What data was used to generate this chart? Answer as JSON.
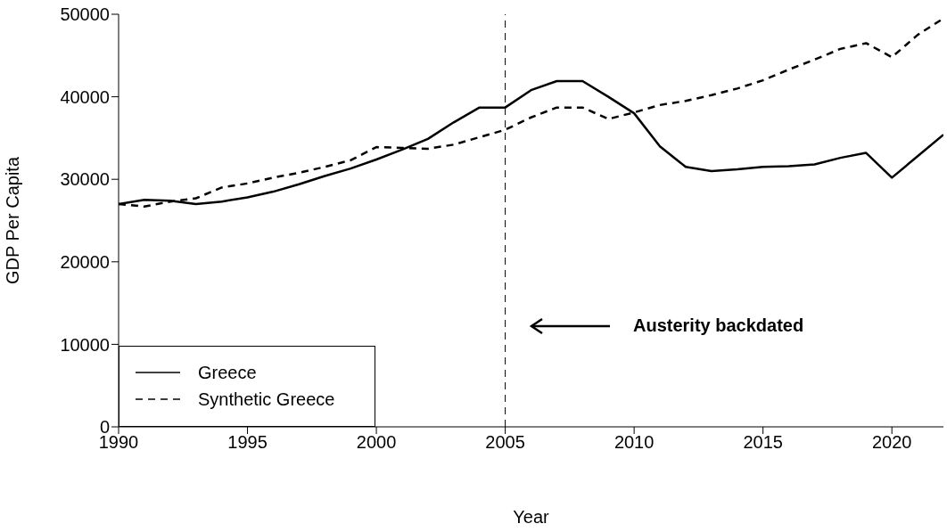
{
  "chart_data": {
    "type": "line",
    "xlabel": "Year",
    "ylabel": "GDP Per Capita",
    "x": [
      1990,
      1991,
      1992,
      1993,
      1994,
      1995,
      1996,
      1997,
      1998,
      1999,
      2000,
      2001,
      2002,
      2003,
      2004,
      2005,
      2006,
      2007,
      2008,
      2009,
      2010,
      2011,
      2012,
      2013,
      2014,
      2015,
      2016,
      2017,
      2018,
      2019,
      2020,
      2021,
      2022
    ],
    "series": [
      {
        "name": "Greece",
        "color": "#000000",
        "line_style": "solid",
        "values": [
          27000,
          27500,
          27400,
          27000,
          27300,
          27800,
          28500,
          29400,
          30400,
          31300,
          32400,
          33600,
          34900,
          36900,
          38700,
          38700,
          40800,
          41900,
          41900,
          40000,
          38000,
          34000,
          31500,
          31000,
          31200,
          31500,
          31600,
          31800,
          32600,
          33200,
          30200,
          32800,
          35400
        ]
      },
      {
        "name": "Synthetic Greece",
        "color": "#000000",
        "line_style": "dashed",
        "values": [
          27000,
          26700,
          27300,
          27700,
          29000,
          29500,
          30200,
          30800,
          31500,
          32300,
          33900,
          33800,
          33700,
          34200,
          35100,
          36000,
          37500,
          38700,
          38700,
          37300,
          38100,
          39000,
          39500,
          40200,
          41000,
          42000,
          43300,
          44500,
          45800,
          46500,
          44800,
          47500,
          49500
        ]
      }
    ],
    "xlim": [
      1990,
      2022
    ],
    "xticks": [
      1990,
      1995,
      2000,
      2005,
      2010,
      2015,
      2020
    ],
    "ylim": [
      0,
      50000
    ],
    "yticks": [
      0,
      10000,
      20000,
      30000,
      40000,
      50000
    ],
    "ref_lines": [
      {
        "axis": "x",
        "value": 2005,
        "line_style": "dashed",
        "color": "#000000"
      }
    ],
    "annotations": [
      "Austerity backdated"
    ],
    "legend": "bottom left",
    "grid": false,
    "marker": "none"
  }
}
